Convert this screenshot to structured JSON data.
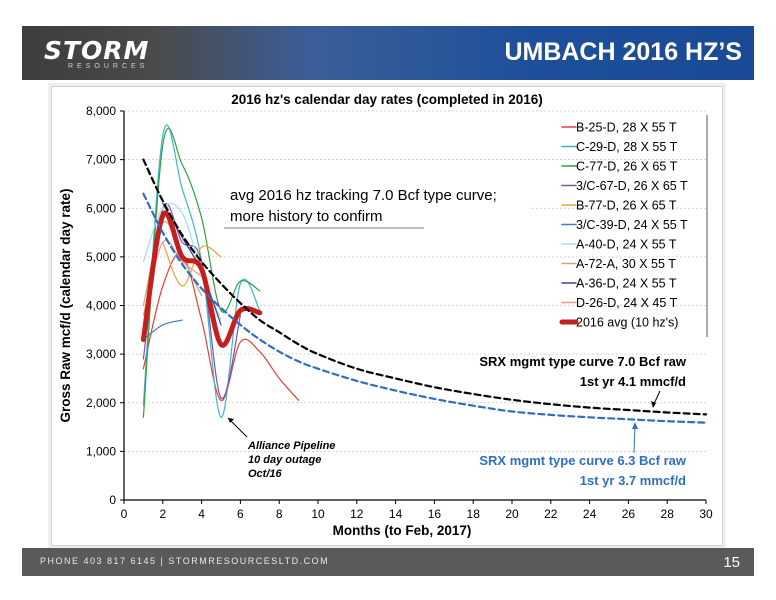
{
  "header": {
    "logo_main": "STORM",
    "logo_sub": "RESOURCES",
    "title": "UMBACH 2016 HZ’S"
  },
  "footer": {
    "text": "PHONE 403 817 6145  |  STORMRESOURCESLTD.COM",
    "page_number": "15"
  },
  "chart_data": {
    "type": "line",
    "title": "2016 hz's calendar day rates (completed in 2016)",
    "xlabel": "Months (to Feb, 2017)",
    "ylabel": "Gross Raw mcf/d (calendar day rate)",
    "xlim": [
      0,
      30
    ],
    "ylim": [
      0,
      8000
    ],
    "x_ticks": [
      "0",
      "2",
      "4",
      "6",
      "8",
      "10",
      "12",
      "14",
      "16",
      "18",
      "20",
      "22",
      "24",
      "26",
      "28",
      "30"
    ],
    "y_ticks": [
      "0",
      "1,000",
      "2,000",
      "3,000",
      "4,000",
      "5,000",
      "6,000",
      "7,000",
      "8,000"
    ],
    "legend_position": "top-right",
    "series": [
      {
        "name": "B-25-D, 28 X 55 T",
        "color": "#e2413a",
        "width": 1.2,
        "dash": "",
        "points": [
          [
            1,
            2700
          ],
          [
            2,
            4400
          ],
          [
            3,
            5050
          ],
          [
            4,
            3700
          ],
          [
            5,
            2050
          ],
          [
            6,
            3250
          ],
          [
            7,
            3050
          ],
          [
            8,
            2500
          ],
          [
            9,
            2050
          ]
        ]
      },
      {
        "name": "C-29-D, 28 X 55 T",
        "color": "#3fb4c4",
        "width": 1.2,
        "dash": "",
        "points": [
          [
            1,
            1950
          ],
          [
            2,
            7500
          ],
          [
            3,
            6400
          ],
          [
            4,
            4900
          ],
          [
            5,
            1700
          ],
          [
            6,
            4450
          ],
          [
            7,
            3900
          ]
        ]
      },
      {
        "name": "C-77-D, 26 X 65 T",
        "color": "#2e9e45",
        "width": 1.2,
        "dash": "",
        "points": [
          [
            1,
            1700
          ],
          [
            2,
            7300
          ],
          [
            3,
            6900
          ],
          [
            4,
            5800
          ],
          [
            5,
            3900
          ],
          [
            6,
            4500
          ],
          [
            7,
            4300
          ]
        ]
      },
      {
        "name": "3/C-67-D, 26 X 65 T",
        "color": "#7a55a8",
        "width": 1.2,
        "dash": "",
        "points": [
          [
            1,
            2900
          ],
          [
            2,
            6000
          ],
          [
            3,
            5300
          ],
          [
            4,
            4900
          ],
          [
            5,
            2100
          ],
          [
            6,
            3800
          ]
        ]
      },
      {
        "name": "B-77-D, 26 X 65 T",
        "color": "#f0a040",
        "width": 1.2,
        "dash": "",
        "points": [
          [
            2,
            5300
          ],
          [
            3,
            4400
          ],
          [
            4,
            5200
          ],
          [
            5,
            5000
          ]
        ]
      },
      {
        "name": "3/C-39-D, 24 X 55 T",
        "color": "#3a7cc0",
        "width": 1.2,
        "dash": "",
        "points": [
          [
            1,
            3300
          ],
          [
            2,
            3600
          ],
          [
            3,
            3700
          ]
        ]
      },
      {
        "name": "A-40-D, 24 X 55 T",
        "color": "#9fe0ec",
        "width": 1.2,
        "dash": "",
        "points": [
          [
            1,
            4900
          ],
          [
            2,
            6000
          ],
          [
            3,
            5900
          ],
          [
            4,
            4700
          ],
          [
            5,
            3700
          ]
        ]
      },
      {
        "name": "A-72-A, 30 X 55 T",
        "color": "#bfae6e",
        "width": 1.2,
        "dash": "",
        "points": [
          [
            1,
            4000
          ],
          [
            2,
            5700
          ],
          [
            3,
            5000
          ],
          [
            4,
            4200
          ]
        ]
      },
      {
        "name": "A-36-D, 24 X 55 T",
        "color": "#4a3a90",
        "width": 1.2,
        "dash": "",
        "points": [
          [
            2,
            6100
          ],
          [
            3,
            5400
          ],
          [
            4,
            4700
          ],
          [
            5,
            3600
          ]
        ]
      },
      {
        "name": "D-26-D, 24 X 45 T",
        "color": "#e89a8a",
        "width": 1.2,
        "dash": "",
        "points": [
          [
            1,
            3800
          ],
          [
            2,
            5300
          ],
          [
            3,
            4900
          ],
          [
            4,
            4600
          ]
        ]
      },
      {
        "name": "2016 avg (10 hz's)",
        "color": "#c41e1e",
        "width": 5,
        "dash": "",
        "points": [
          [
            1,
            3300
          ],
          [
            2,
            5850
          ],
          [
            3,
            5000
          ],
          [
            4,
            4750
          ],
          [
            5,
            3200
          ],
          [
            6,
            3900
          ],
          [
            7,
            3850
          ]
        ]
      },
      {
        "name": "",
        "color": "#000000",
        "width": 2.2,
        "dash": "6,4",
        "points": [
          [
            1,
            7000
          ],
          [
            2,
            6150
          ],
          [
            3,
            5450
          ],
          [
            4,
            4900
          ],
          [
            5,
            4450
          ],
          [
            6,
            4050
          ],
          [
            7,
            3700
          ],
          [
            8,
            3450
          ],
          [
            9,
            3200
          ],
          [
            10,
            3000
          ],
          [
            12,
            2700
          ],
          [
            14,
            2500
          ],
          [
            16,
            2320
          ],
          [
            18,
            2180
          ],
          [
            20,
            2060
          ],
          [
            22,
            1970
          ],
          [
            24,
            1900
          ],
          [
            26,
            1850
          ],
          [
            28,
            1800
          ],
          [
            30,
            1760
          ]
        ]
      },
      {
        "name": "",
        "color": "#2f6fc0",
        "width": 2.2,
        "dash": "6,4",
        "points": [
          [
            1,
            6300
          ],
          [
            2,
            5500
          ],
          [
            3,
            4850
          ],
          [
            4,
            4350
          ],
          [
            5,
            3950
          ],
          [
            6,
            3600
          ],
          [
            7,
            3300
          ],
          [
            8,
            3050
          ],
          [
            9,
            2850
          ],
          [
            10,
            2700
          ],
          [
            12,
            2450
          ],
          [
            14,
            2250
          ],
          [
            16,
            2080
          ],
          [
            18,
            1940
          ],
          [
            20,
            1820
          ],
          [
            22,
            1750
          ],
          [
            24,
            1700
          ],
          [
            26,
            1660
          ],
          [
            28,
            1620
          ],
          [
            30,
            1590
          ]
        ]
      }
    ],
    "annotations": {
      "type_curve_note": [
        "avg 2016 hz tracking 7.0 Bcf type curve;",
        "more history to confirm"
      ],
      "pipeline_note": [
        "Alliance Pipeline",
        "10 day outage",
        "Oct/16"
      ],
      "srx_7": [
        "SRX mgmt type curve 7.0 Bcf raw",
        "1st yr 4.1 mmcf/d"
      ],
      "srx_63": [
        "SRX mgmt type curve 6.3 Bcf raw",
        "1st yr 3.7 mmcf/d"
      ]
    }
  }
}
